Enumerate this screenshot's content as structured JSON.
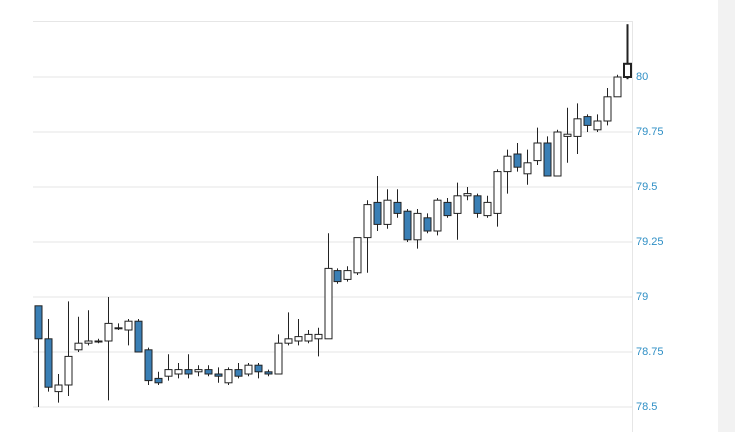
{
  "chart_data": {
    "type": "candlestick",
    "open": [
      78.96,
      78.81,
      78.57,
      78.6,
      78.76,
      78.79,
      78.8,
      78.8,
      78.86,
      78.85,
      78.89,
      78.76,
      78.63,
      78.64,
      78.65,
      78.67,
      78.66,
      78.67,
      78.65,
      78.61,
      78.67,
      78.65,
      78.69,
      78.66,
      78.65,
      78.79,
      78.8,
      78.8,
      78.81,
      78.81,
      79.12,
      79.08,
      79.11,
      79.27,
      79.43,
      79.33,
      79.43,
      79.39,
      79.26,
      79.36,
      79.3,
      79.43,
      79.38,
      79.46,
      79.46,
      79.37,
      79.38,
      79.57,
      79.65,
      79.56,
      79.62,
      79.7,
      79.55,
      79.73,
      79.73,
      79.82,
      79.76,
      79.8,
      79.91,
      80.0
    ],
    "high": [
      78.96,
      78.9,
      78.65,
      78.98,
      78.91,
      78.94,
      78.81,
      79.0,
      78.88,
      78.9,
      78.9,
      78.77,
      78.66,
      78.74,
      78.7,
      78.74,
      78.69,
      78.69,
      78.68,
      78.68,
      78.7,
      78.7,
      78.7,
      78.67,
      78.83,
      78.93,
      78.9,
      78.85,
      78.86,
      79.29,
      79.13,
      79.14,
      79.27,
      79.44,
      79.55,
      79.49,
      79.49,
      79.4,
      79.4,
      79.38,
      79.45,
      79.45,
      79.52,
      79.5,
      79.47,
      79.46,
      79.58,
      79.67,
      79.7,
      79.67,
      79.77,
      79.73,
      79.76,
      79.86,
      79.88,
      79.83,
      79.83,
      79.95,
      80.01,
      80.24
    ],
    "low": [
      78.5,
      78.57,
      78.52,
      78.55,
      78.75,
      78.78,
      78.79,
      78.53,
      78.85,
      78.78,
      78.75,
      78.6,
      78.6,
      78.62,
      78.63,
      78.63,
      78.64,
      78.64,
      78.61,
      78.6,
      78.63,
      78.64,
      78.63,
      78.64,
      78.65,
      78.78,
      78.78,
      78.79,
      78.73,
      78.81,
      79.06,
      79.07,
      79.1,
      79.11,
      79.3,
      79.31,
      79.36,
      79.25,
      79.22,
      79.29,
      79.28,
      79.36,
      79.26,
      79.44,
      79.36,
      79.36,
      79.32,
      79.47,
      79.57,
      79.51,
      79.6,
      79.55,
      79.55,
      79.61,
      79.65,
      79.75,
      79.75,
      79.78,
      79.91,
      79.99
    ],
    "close": [
      78.81,
      78.59,
      78.6,
      78.73,
      78.79,
      78.8,
      78.8,
      78.88,
      78.86,
      78.89,
      78.75,
      78.62,
      78.61,
      78.67,
      78.67,
      78.65,
      78.67,
      78.65,
      78.64,
      78.67,
      78.64,
      78.69,
      78.66,
      78.65,
      78.79,
      78.81,
      78.82,
      78.83,
      78.83,
      79.13,
      79.07,
      79.12,
      79.27,
      79.42,
      79.33,
      79.44,
      79.38,
      79.26,
      79.38,
      79.3,
      79.44,
      79.37,
      79.46,
      79.47,
      79.38,
      79.43,
      79.57,
      79.64,
      79.59,
      79.61,
      79.7,
      79.55,
      79.75,
      79.74,
      79.81,
      79.78,
      79.8,
      79.91,
      80.0,
      80.06
    ],
    "up_color": "#ffffff",
    "down_color": "#3a7fb5",
    "line_color": "#222222",
    "ylim": [
      78.4,
      80.25
    ],
    "yticks": [
      78.5,
      78.75,
      79,
      79.25,
      79.5,
      79.75,
      80
    ],
    "grid": true
  }
}
